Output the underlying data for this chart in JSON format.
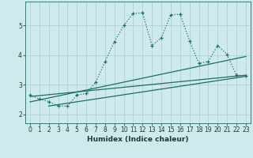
{
  "xlabel": "Humidex (Indice chaleur)",
  "bg_color": "#ceeaec",
  "grid_color": "#aacdd1",
  "line_color": "#1a6e64",
  "xlim": [
    -0.5,
    23.5
  ],
  "ylim": [
    1.7,
    5.8
  ],
  "xticks": [
    0,
    1,
    2,
    3,
    4,
    5,
    6,
    7,
    8,
    9,
    10,
    11,
    12,
    13,
    14,
    15,
    16,
    17,
    18,
    19,
    20,
    21,
    22,
    23
  ],
  "yticks": [
    2,
    3,
    4,
    5
  ],
  "main_x": [
    0,
    1,
    2,
    3,
    4,
    5,
    6,
    7,
    8,
    9,
    10,
    11,
    12,
    13,
    14,
    15,
    16,
    17,
    18,
    19,
    20,
    21,
    22,
    23
  ],
  "main_y": [
    2.65,
    2.52,
    2.43,
    2.28,
    2.28,
    2.65,
    2.7,
    3.08,
    3.78,
    4.45,
    5.0,
    5.4,
    5.42,
    4.32,
    4.58,
    5.35,
    5.38,
    4.48,
    3.72,
    3.78,
    4.32,
    4.02,
    3.32,
    3.3
  ],
  "line2_x": [
    0,
    23
  ],
  "line2_y": [
    2.6,
    3.32
  ],
  "line3_x": [
    0,
    23
  ],
  "line3_y": [
    2.42,
    3.95
  ],
  "line4_x": [
    2,
    23
  ],
  "line4_y": [
    2.28,
    3.28
  ]
}
